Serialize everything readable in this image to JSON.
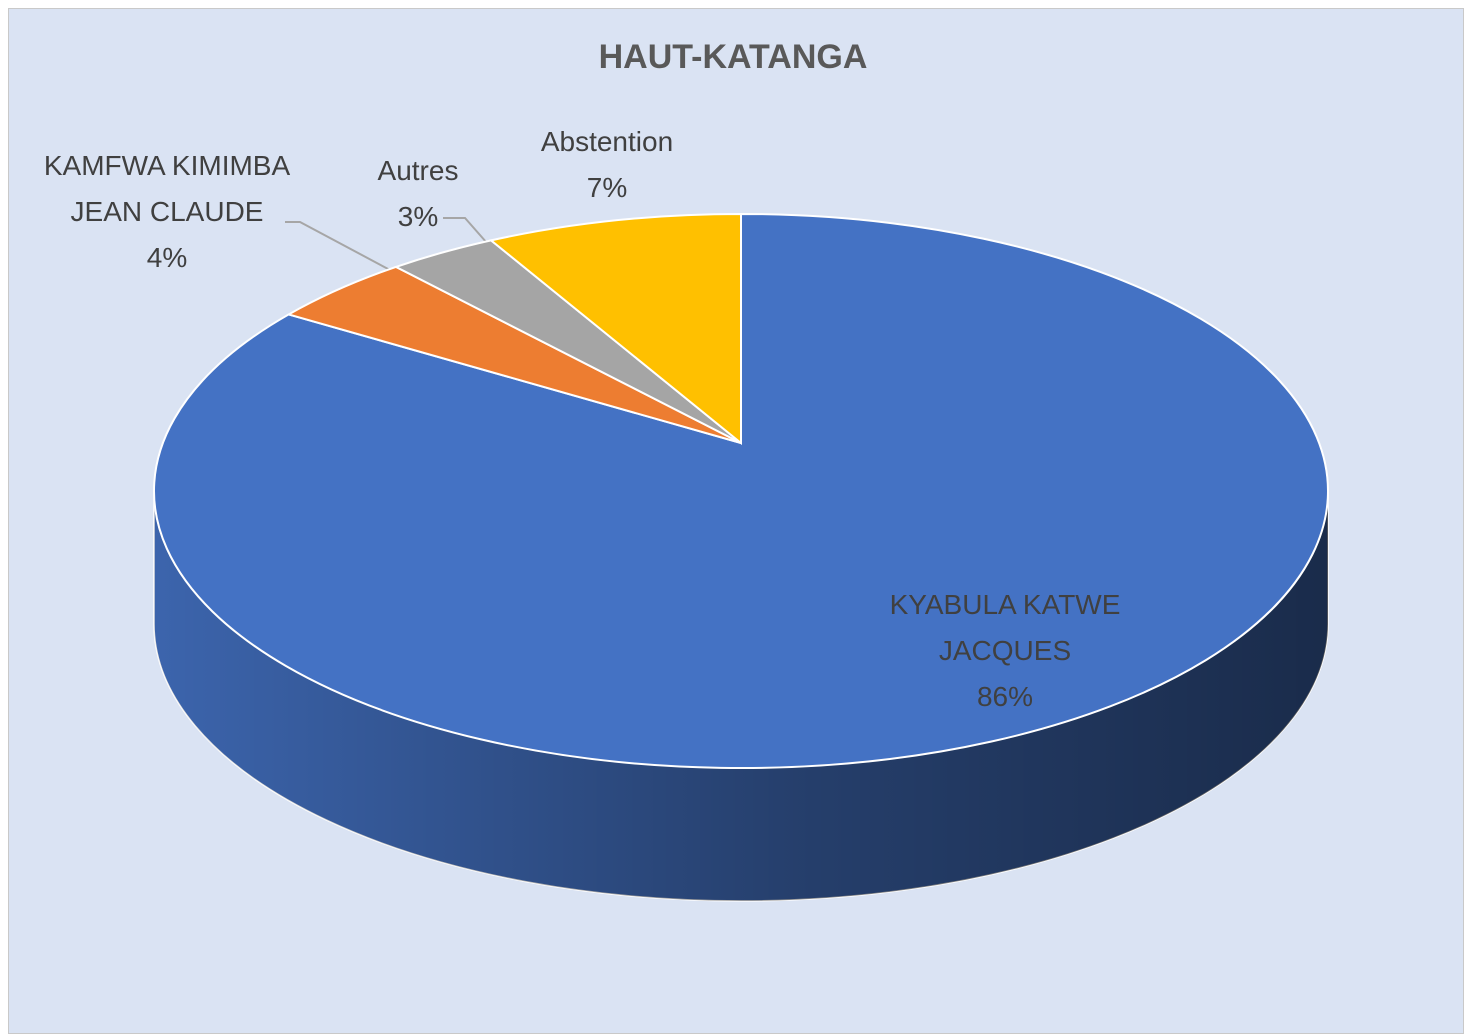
{
  "chart_data": {
    "type": "pie",
    "title": "HAUT-KATANGA",
    "categories": [
      "KYABULA KATWE JACQUES",
      "KAMFWA KIMIMBA JEAN CLAUDE",
      "Autres",
      "Abstention"
    ],
    "values": [
      86,
      4,
      3,
      7
    ],
    "value_labels": [
      "86%",
      "4%",
      "3%",
      "7%"
    ],
    "colors": [
      "#4472c4",
      "#ed7d31",
      "#a5a5a5",
      "#ffc000"
    ]
  }
}
